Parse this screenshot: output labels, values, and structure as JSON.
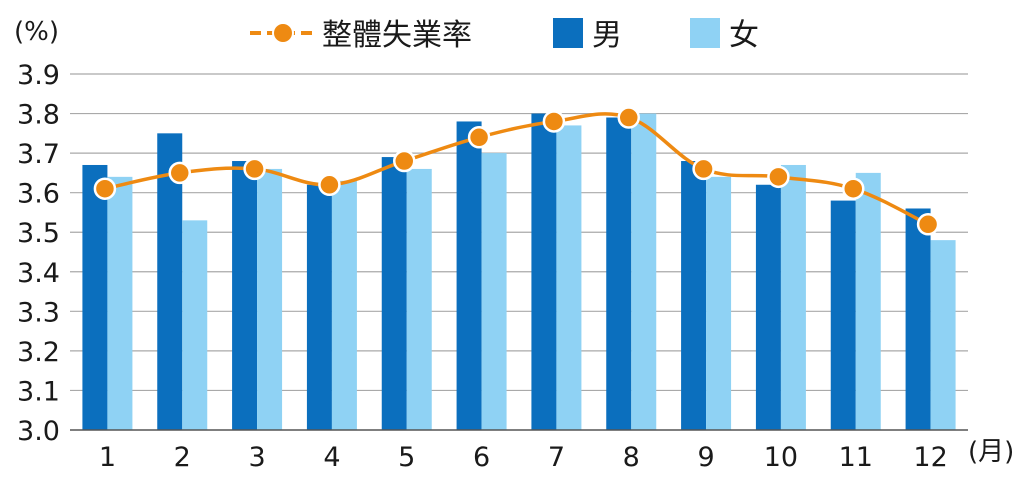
{
  "chart_data": {
    "type": "bar",
    "y_unit": "(%)",
    "x_unit": "(月)",
    "categories": [
      "1",
      "2",
      "3",
      "4",
      "5",
      "6",
      "7",
      "8",
      "9",
      "10",
      "11",
      "12"
    ],
    "ylim": [
      3.0,
      3.9
    ],
    "yticks": [
      "3.0",
      "3.1",
      "3.2",
      "3.3",
      "3.4",
      "3.5",
      "3.6",
      "3.7",
      "3.8",
      "3.9"
    ],
    "grid": true,
    "legend_position": "top",
    "series": [
      {
        "name": "整體失業率",
        "kind": "line",
        "color": "#ee8a12",
        "values": [
          3.61,
          3.65,
          3.66,
          3.62,
          3.68,
          3.74,
          3.78,
          3.79,
          3.66,
          3.64,
          3.61,
          3.52
        ]
      },
      {
        "name": "男",
        "kind": "bar",
        "color": "#0b6fbe",
        "values": [
          3.67,
          3.75,
          3.68,
          3.62,
          3.69,
          3.78,
          3.8,
          3.79,
          3.68,
          3.62,
          3.58,
          3.56
        ]
      },
      {
        "name": "女",
        "kind": "bar",
        "color": "#8fd2f4",
        "values": [
          3.64,
          3.53,
          3.66,
          3.63,
          3.66,
          3.7,
          3.77,
          3.8,
          3.64,
          3.67,
          3.65,
          3.48
        ]
      }
    ]
  }
}
